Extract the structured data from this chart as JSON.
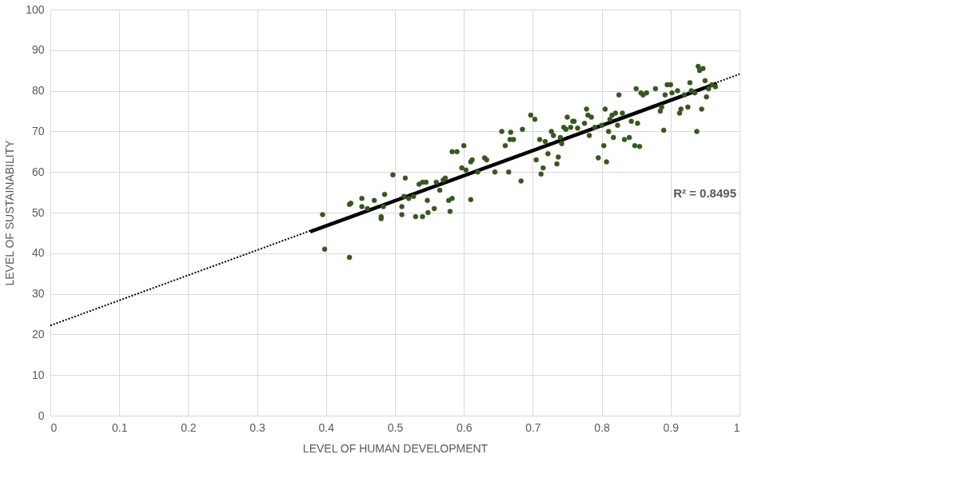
{
  "chart_data": {
    "type": "scatter",
    "xlabel": "LEVEL OF HUMAN DEVELOPMENT",
    "ylabel": "LEVEL OF SUSTAINABILITY",
    "xlim": [
      0,
      1
    ],
    "xticks": [
      0,
      0.1,
      0.2,
      0.3,
      0.4,
      0.5,
      0.6,
      0.7,
      0.8,
      0.9,
      1
    ],
    "ylim": [
      0,
      100
    ],
    "yticks": [
      0,
      10,
      20,
      30,
      40,
      50,
      60,
      70,
      80,
      90,
      100
    ],
    "grid": true,
    "annotations": [
      "R² = 0.8495"
    ],
    "series": [
      {
        "color": "#375623",
        "marker": "circle",
        "x": [
          0.395,
          0.398,
          0.434,
          0.434,
          0.436,
          0.452,
          0.452,
          0.46,
          0.47,
          0.48,
          0.48,
          0.483,
          0.485,
          0.497,
          0.51,
          0.51,
          0.513,
          0.515,
          0.52,
          0.527,
          0.53,
          0.535,
          0.54,
          0.54,
          0.545,
          0.547,
          0.548,
          0.557,
          0.56,
          0.565,
          0.57,
          0.573,
          0.578,
          0.58,
          0.583,
          0.583,
          0.59,
          0.597,
          0.6,
          0.603,
          0.61,
          0.61,
          0.612,
          0.62,
          0.63,
          0.633,
          0.645,
          0.655,
          0.66,
          0.665,
          0.667,
          0.668,
          0.672,
          0.683,
          0.685,
          0.697,
          0.703,
          0.705,
          0.71,
          0.712,
          0.715,
          0.718,
          0.722,
          0.727,
          0.73,
          0.735,
          0.737,
          0.74,
          0.742,
          0.745,
          0.748,
          0.75,
          0.755,
          0.758,
          0.76,
          0.765,
          0.775,
          0.778,
          0.78,
          0.782,
          0.785,
          0.79,
          0.795,
          0.8,
          0.803,
          0.805,
          0.807,
          0.81,
          0.812,
          0.815,
          0.817,
          0.82,
          0.823,
          0.825,
          0.83,
          0.833,
          0.84,
          0.843,
          0.848,
          0.85,
          0.852,
          0.855,
          0.857,
          0.86,
          0.865,
          0.878,
          0.885,
          0.887,
          0.89,
          0.892,
          0.895,
          0.9,
          0.902,
          0.91,
          0.913,
          0.915,
          0.92,
          0.925,
          0.928,
          0.93,
          0.935,
          0.938,
          0.94,
          0.942,
          0.945,
          0.947,
          0.95,
          0.952,
          0.955,
          0.96,
          0.965
        ],
        "values": [
          49.5,
          41,
          39,
          52,
          52.3,
          53.5,
          51.5,
          51,
          53,
          49,
          48.5,
          51.5,
          54.5,
          59.3,
          51.5,
          49.5,
          54,
          58.5,
          53.5,
          54,
          49,
          57,
          57.5,
          49,
          57.5,
          53,
          50,
          51,
          57.5,
          55.5,
          58,
          58.5,
          53,
          50.3,
          53.5,
          65,
          65,
          61,
          66.5,
          60.5,
          62.5,
          53.2,
          63,
          60,
          63.5,
          63,
          60,
          70,
          66.5,
          60,
          68,
          69.8,
          68,
          57.8,
          70.5,
          74,
          73,
          63,
          68,
          59.5,
          61,
          67.5,
          64.5,
          70,
          69,
          62,
          63.7,
          68.5,
          67,
          71,
          70.5,
          73.5,
          71,
          72.5,
          72.5,
          70.8,
          72,
          75.5,
          74,
          69,
          73.5,
          71,
          63.5,
          71.5,
          66.5,
          75.5,
          62.5,
          70,
          73,
          74,
          68.5,
          74.5,
          71.5,
          79,
          74.5,
          68,
          68.5,
          72.5,
          66.5,
          80.5,
          72,
          66.3,
          79.5,
          79,
          79.5,
          80.5,
          75,
          76,
          70.3,
          79,
          81.5,
          81.5,
          79.5,
          80,
          74.5,
          75.5,
          79,
          76,
          82,
          80,
          79.5,
          70,
          86,
          85,
          75.5,
          85.5,
          82.5,
          78.5,
          80.5,
          81.5,
          81
        ]
      },
      {
        "type": "line",
        "color": "#000000",
        "line_style": "dotted",
        "x": [
          0,
          1
        ],
        "values": [
          22.2,
          84.1
        ]
      },
      {
        "type": "line",
        "color": "#000000",
        "line_style": "solid",
        "x": [
          0.377,
          0.967
        ],
        "values": [
          45.3,
          81.8
        ]
      }
    ]
  }
}
